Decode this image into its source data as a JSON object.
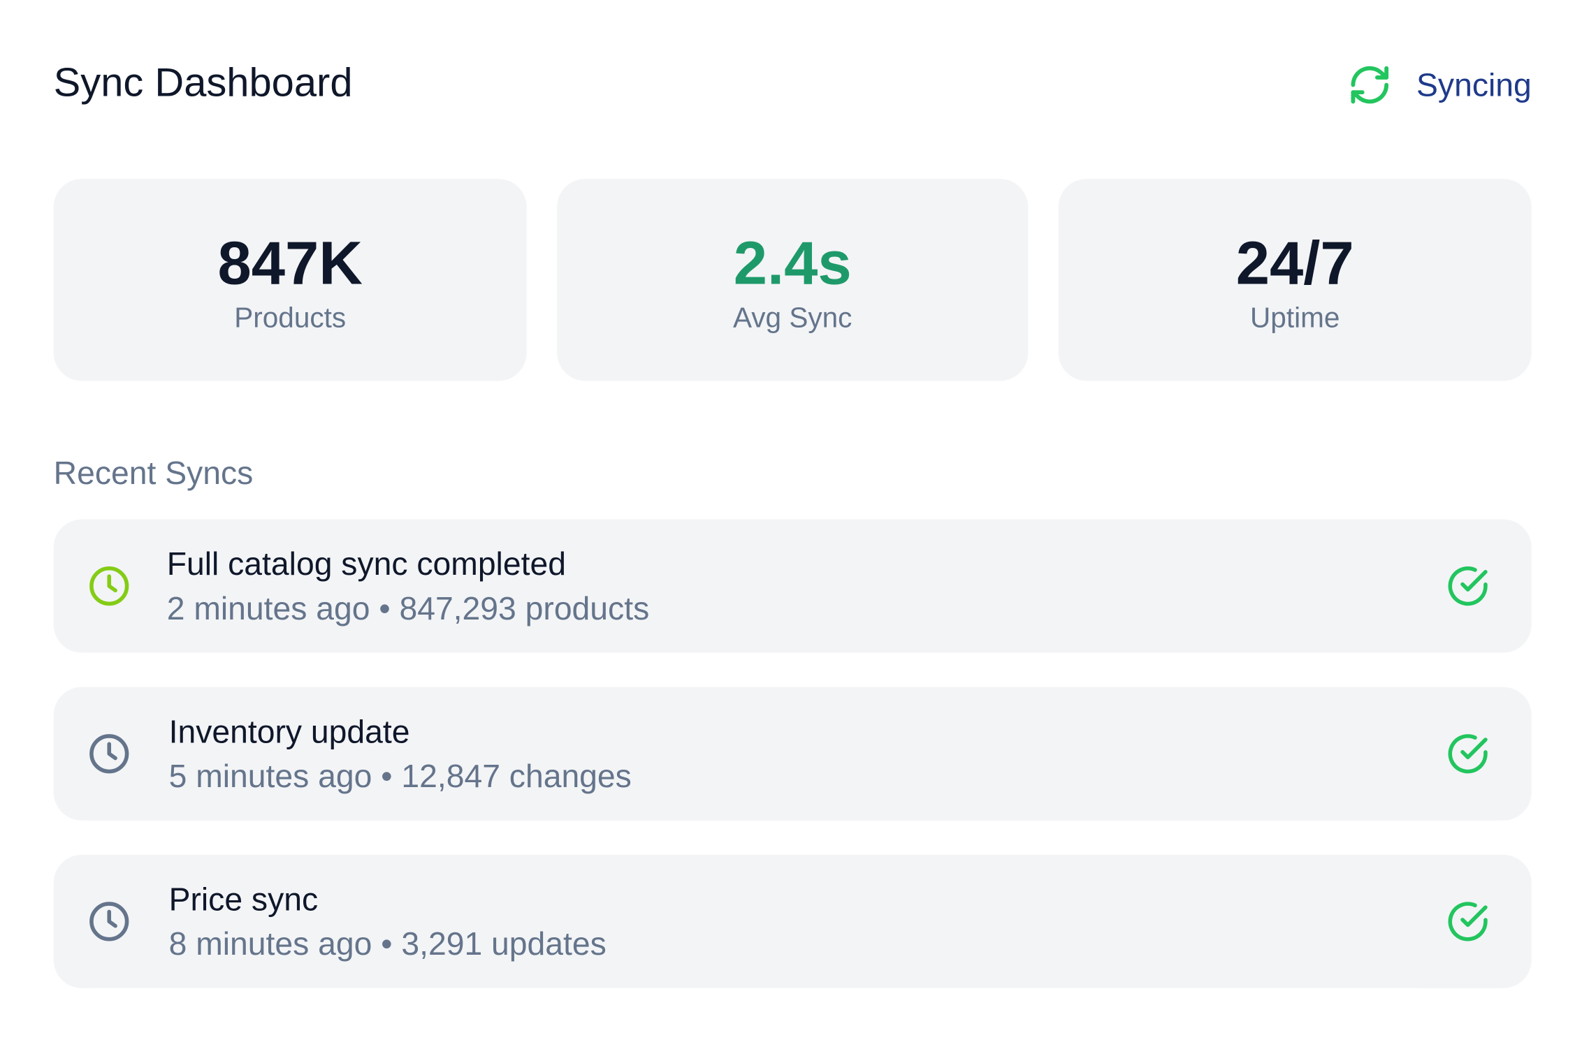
{
  "header": {
    "title": "Sync Dashboard",
    "status_label": "Syncing",
    "status_icon": "refresh-icon",
    "status_icon_color": "#22c55e"
  },
  "stats": [
    {
      "value": "847K",
      "label": "Products"
    },
    {
      "value": "2.4s",
      "label": "Avg Sync",
      "value_color": "#1e9a6a"
    },
    {
      "value": "24/7",
      "label": "Uptime"
    }
  ],
  "recent": {
    "title": "Recent Syncs",
    "items": [
      {
        "title": "Full catalog sync completed",
        "time": "2 minutes ago",
        "detail": "847,293 products",
        "meta": "2 minutes ago • 847,293 products",
        "icon": "clock-icon",
        "icon_color": "#84cc16",
        "status_icon": "check-circle-icon",
        "status_color": "#22c55e"
      },
      {
        "title": "Inventory update",
        "time": "5 minutes ago",
        "detail": "12,847 changes",
        "meta": "5 minutes ago • 12,847 changes",
        "icon": "clock-icon",
        "icon_color": "#64748b",
        "status_icon": "check-circle-icon",
        "status_color": "#22c55e"
      },
      {
        "title": "Price sync",
        "time": "8 minutes ago",
        "detail": "3,291 updates",
        "meta": "8 minutes ago • 3,291 updates",
        "icon": "clock-icon",
        "icon_color": "#64748b",
        "status_icon": "check-circle-icon",
        "status_color": "#22c55e"
      }
    ]
  },
  "colors": {
    "background": "#ffffff",
    "card": "#f3f4f6",
    "text_primary": "#0f172a",
    "text_secondary": "#64748b",
    "status_text": "#1e3a8a",
    "success": "#22c55e"
  }
}
